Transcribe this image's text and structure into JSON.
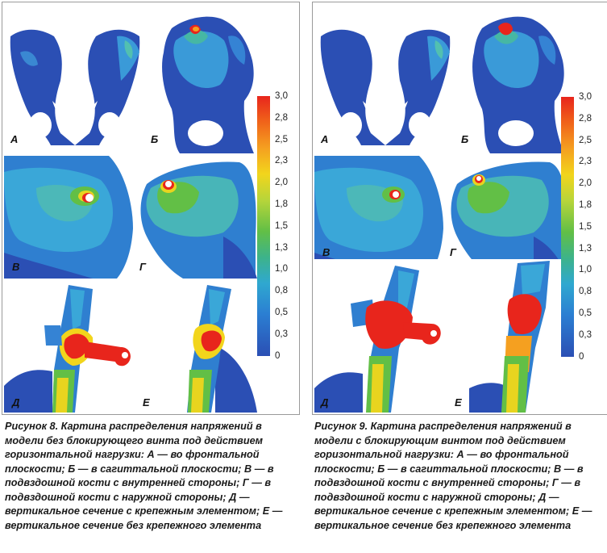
{
  "colors": {
    "bone_base": "#2b4fb4",
    "bone_light": "#35a8d8",
    "green": "#55bb48",
    "yellow": "#e8d41f",
    "red": "#e8251c",
    "background": "#ffffff"
  },
  "scale": {
    "ticks": [
      "3,0",
      "2,8",
      "2,5",
      "2,3",
      "2,0",
      "1,8",
      "1,5",
      "1,3",
      "1,0",
      "0,8",
      "0,5",
      "0,3",
      "0"
    ]
  },
  "figures": [
    {
      "panels": [
        {
          "label": "А"
        },
        {
          "label": "Б"
        },
        {
          "label": "В"
        },
        {
          "label": "Г"
        },
        {
          "label": "Д"
        },
        {
          "label": "Е"
        }
      ],
      "caption_title": "Рисунок 8.",
      "caption_text": "Картина распределения напряжений в модели без блокирующего винта под действием горизонтальной нагрузки: А — во фронтальной плоскости; Б — в сагиттальной плоскости; В — в подвздошной кости с внутренней стороны; Г — в подвздошной кости с наружной стороны; Д — вертикальное сечение с крепежным элементом; Е — вертикальное сечение без крепежного элемента"
    },
    {
      "panels": [
        {
          "label": "А"
        },
        {
          "label": "Б"
        },
        {
          "label": "В"
        },
        {
          "label": "Г"
        },
        {
          "label": "Д"
        },
        {
          "label": "Е"
        }
      ],
      "caption_title": "Рисунок 9.",
      "caption_text": "Картина распределения напряжений в модели с блокирующим винтом под действием горизонтальной нагрузки: А — во фронтальной плоскости; Б — в сагиттальной плоскости; В — в подвздошной кости с внутренней стороны; Г — в подвздошной кости с наружной стороны; Д — вертикальное сечение с крепежным элементом; Е — вертикальное сечение без крепежного элемента"
    }
  ]
}
